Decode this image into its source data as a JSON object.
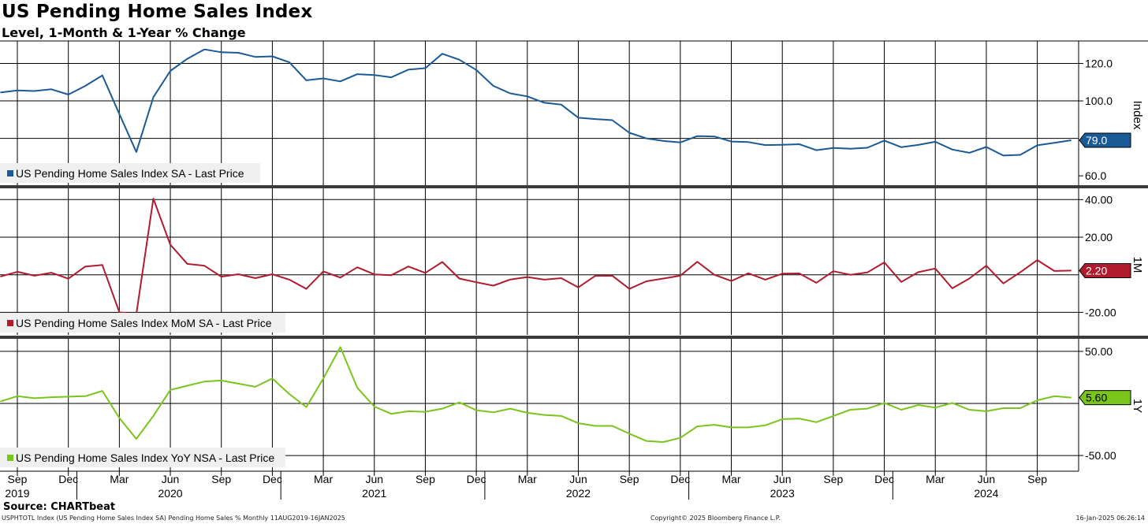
{
  "header": {
    "title": "US Pending Home Sales Index",
    "subtitle": "Level, 1-Month & 1-Year % Change"
  },
  "footer": {
    "source": "Source: CHARTbeat",
    "description": "USPHTOTL Index (US Pending Home Sales Index SA) Pending Home Sales %  Monthly 11AUG2019-16JAN2025",
    "copyright": "Copyright© 2025 Bloomberg Finance L.P.",
    "timestamp": "16-Jan-2025 06:26:14"
  },
  "chart_data": [
    {
      "type": "line",
      "panel": "level",
      "ylabel": "Index",
      "yticks": [
        "120.0",
        "100.0",
        "60.0"
      ],
      "ylim": [
        55,
        132
      ],
      "color": "#1a5a96",
      "legend": "US Pending Home Sales Index SA - Last Price",
      "last_value_label": "79.0",
      "x": [
        "2019-08",
        "2019-09",
        "2019-10",
        "2019-11",
        "2019-12",
        "2020-01",
        "2020-02",
        "2020-03",
        "2020-04",
        "2020-05",
        "2020-06",
        "2020-07",
        "2020-08",
        "2020-09",
        "2020-10",
        "2020-11",
        "2020-12",
        "2021-01",
        "2021-02",
        "2021-03",
        "2021-04",
        "2021-05",
        "2021-06",
        "2021-07",
        "2021-08",
        "2021-09",
        "2021-10",
        "2021-11",
        "2021-12",
        "2022-01",
        "2022-02",
        "2022-03",
        "2022-04",
        "2022-05",
        "2022-06",
        "2022-07",
        "2022-08",
        "2022-09",
        "2022-10",
        "2022-11",
        "2022-12",
        "2023-01",
        "2023-02",
        "2023-03",
        "2023-04",
        "2023-05",
        "2023-06",
        "2023-07",
        "2023-08",
        "2023-09",
        "2023-10",
        "2023-11",
        "2023-12",
        "2024-01",
        "2024-02",
        "2024-03",
        "2024-04",
        "2024-05",
        "2024-06",
        "2024-07",
        "2024-08",
        "2024-09",
        "2024-10",
        "2024-11"
      ],
      "values": [
        104.5,
        105.6,
        105.3,
        106.2,
        103.4,
        108.0,
        113.6,
        93.0,
        72.7,
        102.0,
        116.0,
        122.5,
        127.5,
        126.0,
        125.7,
        123.5,
        123.8,
        120.6,
        111.0,
        112.0,
        110.4,
        114.3,
        113.8,
        112.6,
        116.7,
        117.5,
        125.2,
        122.0,
        116.5,
        108.0,
        104.0,
        102.4,
        99.0,
        98.0,
        91.0,
        90.3,
        89.7,
        83.0,
        80.0,
        78.6,
        77.8,
        81.2,
        81.0,
        78.3,
        78.0,
        76.4,
        76.6,
        76.9,
        73.7,
        74.9,
        74.5,
        75.0,
        78.8,
        75.3,
        76.5,
        78.2,
        74.0,
        72.3,
        75.4,
        70.8,
        71.2,
        76.3,
        77.6,
        79.0
      ]
    },
    {
      "type": "line",
      "panel": "mom",
      "ylabel": "1M",
      "yticks": [
        "40.00",
        "20.00",
        "-20.00"
      ],
      "ylim": [
        -32,
        46
      ],
      "color": "#b01c2e",
      "legend": "US Pending Home Sales Index MoM SA - Last Price",
      "last_value_label": "2.20",
      "x": [
        "2019-08",
        "2019-09",
        "2019-10",
        "2019-11",
        "2019-12",
        "2020-01",
        "2020-02",
        "2020-03",
        "2020-04",
        "2020-05",
        "2020-06",
        "2020-07",
        "2020-08",
        "2020-09",
        "2020-10",
        "2020-11",
        "2020-12",
        "2021-01",
        "2021-02",
        "2021-03",
        "2021-04",
        "2021-05",
        "2021-06",
        "2021-07",
        "2021-08",
        "2021-09",
        "2021-10",
        "2021-11",
        "2021-12",
        "2022-01",
        "2022-02",
        "2022-03",
        "2022-04",
        "2022-05",
        "2022-06",
        "2022-07",
        "2022-08",
        "2022-09",
        "2022-10",
        "2022-11",
        "2022-12",
        "2023-01",
        "2023-02",
        "2023-03",
        "2023-04",
        "2023-05",
        "2023-06",
        "2023-07",
        "2023-08",
        "2023-09",
        "2023-10",
        "2023-11",
        "2023-12",
        "2024-01",
        "2024-02",
        "2024-03",
        "2024-04",
        "2024-05",
        "2024-06",
        "2024-07",
        "2024-08",
        "2024-09",
        "2024-10",
        "2024-11"
      ],
      "values": [
        -1.0,
        1.6,
        -0.5,
        1.1,
        -2.1,
        4.4,
        5.2,
        -20.0,
        -21.0,
        40.5,
        16.0,
        5.8,
        4.8,
        -1.0,
        0.3,
        -1.8,
        0.3,
        -2.6,
        -7.5,
        1.8,
        -1.5,
        4.0,
        0.2,
        -0.2,
        4.4,
        1.0,
        6.8,
        -2.0,
        -4.0,
        -5.8,
        -2.5,
        -1.2,
        -2.6,
        -1.8,
        -6.7,
        -0.6,
        -0.5,
        -7.5,
        -3.5,
        -2.0,
        -0.5,
        6.9,
        0.0,
        -3.3,
        0.8,
        -2.6,
        0.6,
        0.7,
        -4.3,
        1.9,
        0.0,
        1.2,
        6.6,
        -3.8,
        1.4,
        3.3,
        -7.2,
        -2.0,
        4.8,
        -4.6,
        1.3,
        7.8,
        2.0,
        2.2
      ]
    },
    {
      "type": "line",
      "panel": "yoy",
      "ylabel": "1Y",
      "yticks": [
        "50.00",
        "-50.00"
      ],
      "ylim": [
        -65,
        62
      ],
      "color": "#7ac51b",
      "legend": "US Pending Home Sales Index YoY NSA - Last Price",
      "last_value_label": "5.60",
      "x": [
        "2019-08",
        "2019-09",
        "2019-10",
        "2019-11",
        "2019-12",
        "2020-01",
        "2020-02",
        "2020-03",
        "2020-04",
        "2020-05",
        "2020-06",
        "2020-07",
        "2020-08",
        "2020-09",
        "2020-10",
        "2020-11",
        "2020-12",
        "2021-01",
        "2021-02",
        "2021-03",
        "2021-04",
        "2021-05",
        "2021-06",
        "2021-07",
        "2021-08",
        "2021-09",
        "2021-10",
        "2021-11",
        "2021-12",
        "2022-01",
        "2022-02",
        "2022-03",
        "2022-04",
        "2022-05",
        "2022-06",
        "2022-07",
        "2022-08",
        "2022-09",
        "2022-10",
        "2022-11",
        "2022-12",
        "2023-01",
        "2023-02",
        "2023-03",
        "2023-04",
        "2023-05",
        "2023-06",
        "2023-07",
        "2023-08",
        "2023-09",
        "2023-10",
        "2023-11",
        "2023-12",
        "2024-01",
        "2024-02",
        "2024-03",
        "2024-04",
        "2024-05",
        "2024-06",
        "2024-07",
        "2024-08",
        "2024-09",
        "2024-10",
        "2024-11"
      ],
      "values": [
        2.0,
        7.0,
        5.0,
        6.0,
        6.5,
        7.0,
        12.0,
        -14.0,
        -34.0,
        -12.0,
        13.0,
        17.0,
        21.0,
        22.0,
        19.0,
        16.0,
        24.0,
        9.0,
        -3.5,
        24.0,
        54.0,
        15.0,
        -3.0,
        -10.0,
        -7.5,
        -8.0,
        -5.0,
        1.0,
        -6.5,
        -8.5,
        -5.0,
        -9.0,
        -11.0,
        -12.0,
        -19.0,
        -21.5,
        -21.5,
        -29.0,
        -36.0,
        -37.0,
        -33.0,
        -22.0,
        -20.5,
        -23.0,
        -23.0,
        -21.0,
        -15.0,
        -14.5,
        -18.0,
        -12.0,
        -6.0,
        -5.0,
        0.5,
        -6.0,
        -1.5,
        -4.0,
        0.5,
        -6.0,
        -7.5,
        -4.5,
        -4.5,
        3.0,
        7.0,
        5.6
      ]
    }
  ],
  "x_axis": {
    "ticks": [
      {
        "month": "Sep",
        "date": "2019-09"
      },
      {
        "month": "Dec",
        "date": "2019-12"
      },
      {
        "month": "Mar",
        "date": "2020-03"
      },
      {
        "month": "Jun",
        "date": "2020-06"
      },
      {
        "month": "Sep",
        "date": "2020-09"
      },
      {
        "month": "Dec",
        "date": "2020-12"
      },
      {
        "month": "Mar",
        "date": "2021-03"
      },
      {
        "month": "Jun",
        "date": "2021-06"
      },
      {
        "month": "Sep",
        "date": "2021-09"
      },
      {
        "month": "Dec",
        "date": "2021-12"
      },
      {
        "month": "Mar",
        "date": "2022-03"
      },
      {
        "month": "Jun",
        "date": "2022-06"
      },
      {
        "month": "Sep",
        "date": "2022-09"
      },
      {
        "month": "Dec",
        "date": "2022-12"
      },
      {
        "month": "Mar",
        "date": "2023-03"
      },
      {
        "month": "Jun",
        "date": "2023-06"
      },
      {
        "month": "Sep",
        "date": "2023-09"
      },
      {
        "month": "Dec",
        "date": "2023-12"
      },
      {
        "month": "Mar",
        "date": "2024-03"
      },
      {
        "month": "Jun",
        "date": "2024-06"
      },
      {
        "month": "Sep",
        "date": "2024-09"
      }
    ],
    "years": [
      {
        "label": "2019",
        "date": "2019-09"
      },
      {
        "label": "2020",
        "date": "2020-06"
      },
      {
        "label": "2021",
        "date": "2021-06"
      },
      {
        "label": "2022",
        "date": "2022-06"
      },
      {
        "label": "2023",
        "date": "2023-06"
      },
      {
        "label": "2024",
        "date": "2024-06"
      }
    ]
  }
}
